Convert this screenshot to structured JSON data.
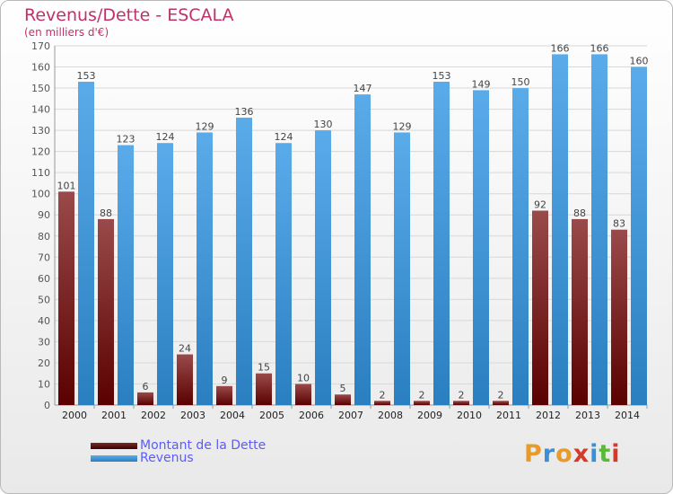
{
  "title": "Revenus/Dette - ESCALA",
  "subtitle": "(en milliers d'€)",
  "colors": {
    "title": "#c0306a",
    "dette_dark": "#5a0000",
    "dette_light": "#9a4a4a",
    "revenus_dark": "#2a7fc0",
    "revenus_light": "#5aabea",
    "legend_text": "#5b5bff"
  },
  "legend": {
    "dette_label": "Montant de la Dette",
    "revenus_label": "Revenus"
  },
  "logo": {
    "letters": [
      "P",
      "r",
      "o",
      "x",
      "i",
      "t",
      "i"
    ],
    "colors": [
      "#e89a2a",
      "#3b8fd6",
      "#e89a2a",
      "#d23a2a",
      "#3b8fd6",
      "#5bb83b",
      "#d23a2a"
    ]
  },
  "chart_data": {
    "type": "bar",
    "categories": [
      "2000",
      "2001",
      "2002",
      "2003",
      "2004",
      "2005",
      "2006",
      "2007",
      "2008",
      "2009",
      "2010",
      "2011",
      "2012",
      "2013",
      "2014"
    ],
    "series": [
      {
        "name": "Montant de la Dette",
        "values": [
          101,
          88,
          6,
          24,
          9,
          15,
          10,
          5,
          2,
          2,
          2,
          2,
          92,
          88,
          83
        ]
      },
      {
        "name": "Revenus",
        "values": [
          153,
          123,
          124,
          129,
          136,
          124,
          130,
          147,
          129,
          153,
          149,
          150,
          166,
          166,
          160
        ]
      }
    ],
    "ylim": [
      0,
      170
    ],
    "yticks": [
      0,
      10,
      20,
      30,
      40,
      50,
      60,
      70,
      80,
      90,
      100,
      110,
      120,
      130,
      140,
      150,
      160,
      170
    ],
    "xlabel": "",
    "ylabel": "",
    "grid": true,
    "legend_position": "bottom-left"
  }
}
